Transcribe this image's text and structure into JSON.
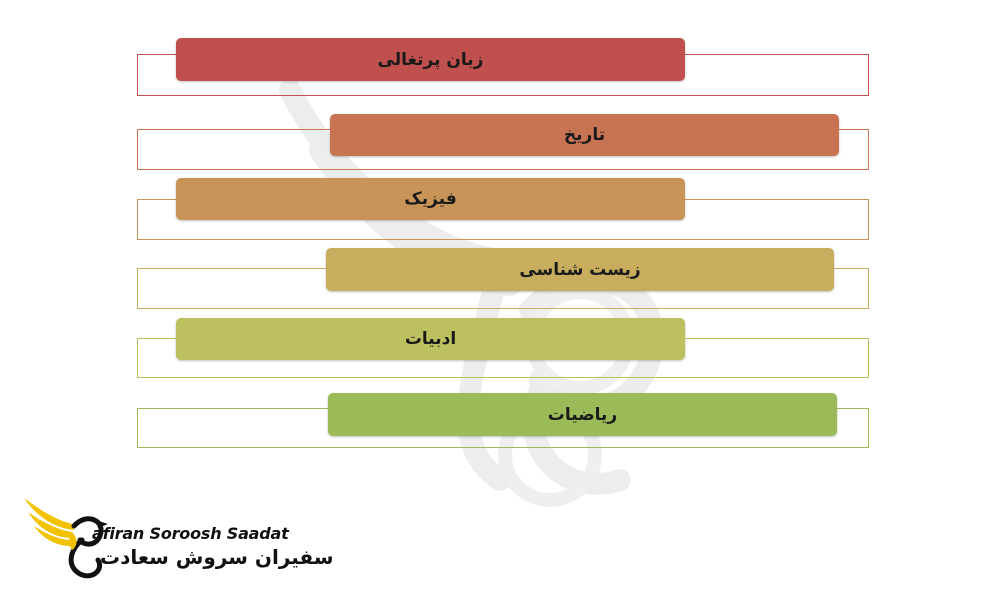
{
  "diagram": {
    "items": [
      {
        "label": "زبان پرتغالی",
        "color": "#c0504d"
      },
      {
        "label": "تاریخ",
        "color": "#c87352"
      },
      {
        "label": "فیزیک",
        "color": "#c89458"
      },
      {
        "label": "زیست شناسی",
        "color": "#c8ad5f"
      },
      {
        "label": "ادبیات",
        "color": "#bcc05f"
      },
      {
        "label": "ریاضیات",
        "color": "#9bbb59"
      }
    ]
  },
  "logo": {
    "english": "afiran Soroosh Saadat",
    "persian": "سفیران سروش سعادت",
    "wing_color": "#f2c200",
    "text_color": "#111111"
  }
}
